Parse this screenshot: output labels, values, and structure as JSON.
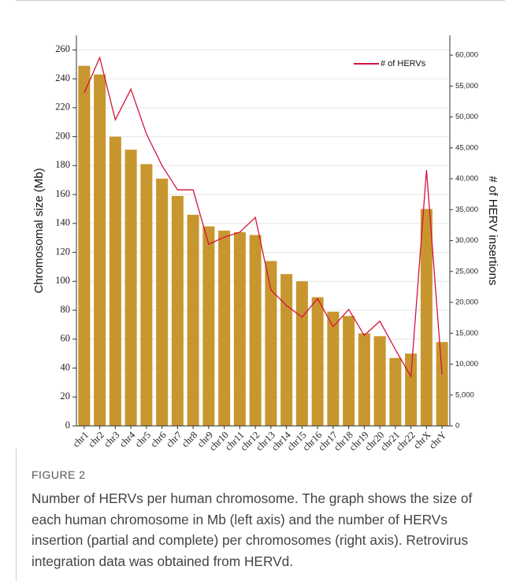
{
  "chart_data": {
    "type": "bar",
    "categories": [
      "chr1",
      "chr2",
      "chr3",
      "chr4",
      "chr5",
      "chr6",
      "chr7",
      "chr8",
      "chr9",
      "chr10",
      "chr11",
      "chr12",
      "chr13",
      "chr14",
      "chr15",
      "chr16",
      "chr17",
      "chr18",
      "chr19",
      "chr20",
      "chr21",
      "chr22",
      "chrX",
      "chrY"
    ],
    "series": [
      {
        "type": "bar",
        "color": "#c8962e",
        "values": [
          249,
          243,
          200,
          191,
          181,
          171,
          159,
          146,
          138,
          135,
          134,
          132,
          114,
          105,
          100,
          89,
          79,
          76,
          64,
          62,
          47,
          50,
          150,
          58
        ]
      },
      {
        "type": "line",
        "name": "# of HERVs",
        "axis": "y2",
        "color": "#d3133c",
        "values": [
          53900,
          59600,
          49550,
          54500,
          47250,
          42150,
          38200,
          38200,
          29400,
          30550,
          31350,
          33750,
          22000,
          19500,
          17600,
          20600,
          16050,
          18850,
          14650,
          16950,
          12350,
          8000,
          41400,
          8300
        ]
      }
    ],
    "ylabel": "Chromosomal size (Mb)",
    "y2label": "# of HERV insertions",
    "ylim": [
      0,
      270
    ],
    "yticks": [
      0,
      20,
      40,
      60,
      80,
      100,
      120,
      140,
      160,
      180,
      200,
      220,
      240,
      260
    ],
    "y2lim": [
      0,
      63200
    ],
    "y2ticks": [
      0,
      {
        "value": 5000,
        "label": "5,000"
      },
      {
        "value": 10000,
        "label": "10,000"
      },
      {
        "value": 15000,
        "label": "15,000"
      },
      {
        "value": 20000,
        "label": "20,000"
      },
      {
        "value": 25000,
        "label": "25,000"
      },
      {
        "value": 30000,
        "label": "30,000"
      },
      {
        "value": 35000,
        "label": "35,000"
      },
      {
        "value": 40000,
        "label": "40,000"
      },
      {
        "value": 45000,
        "label": "45,000"
      },
      {
        "value": 50000,
        "label": "50,000"
      },
      {
        "value": 55000,
        "label": "55,000"
      },
      {
        "value": 60000,
        "label": "60,000"
      }
    ],
    "grid": true,
    "legend": "upper right"
  },
  "figure_label": "FIGURE 2",
  "caption": "Number of HERVs per human chromosome. The graph shows the size of each human chromosome in Mb (left axis) and the number of HERVs insertion (partial and complete) per chromosomes (right axis). Retrovirus integration data was obtained from HERVd."
}
